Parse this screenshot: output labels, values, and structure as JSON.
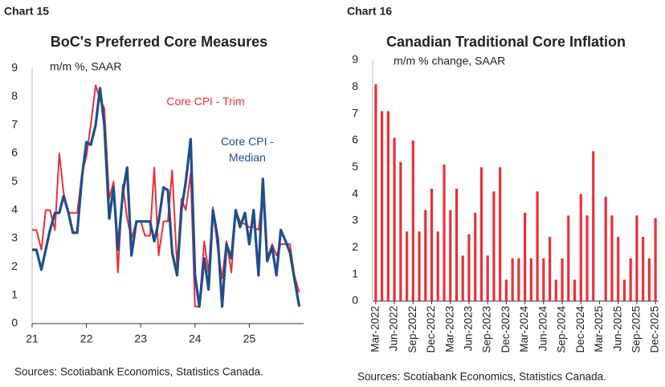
{
  "chart_data": [
    {
      "type": "line",
      "chart_label": "Chart 15",
      "title": "BoC's Preferred Core Measures",
      "subtitle": "m/m %, SAAR",
      "source": "Sources: Scotiabank Economics, Statistics Canada.",
      "x": [
        21,
        21.08,
        21.17,
        21.25,
        21.33,
        21.42,
        21.5,
        21.58,
        21.67,
        21.75,
        21.83,
        21.92,
        22,
        22.08,
        22.17,
        22.25,
        22.33,
        22.42,
        22.5,
        22.58,
        22.67,
        22.75,
        22.83,
        22.92,
        23,
        23.08,
        23.17,
        23.25,
        23.33,
        23.42,
        23.5,
        23.58,
        23.67,
        23.75,
        23.83,
        23.92,
        24,
        24.08,
        24.17,
        24.25,
        24.33,
        24.42,
        24.5,
        24.58,
        24.67,
        24.75,
        24.83,
        24.92,
        25,
        25.08,
        25.17,
        25.25,
        25.33,
        25.42,
        25.5,
        25.58,
        25.67,
        25.75,
        25.83,
        25.92
      ],
      "series": [
        {
          "name": "Core CPI - Trim",
          "color": "#e8303a",
          "values": [
            3.3,
            3.3,
            2.6,
            4.0,
            4.0,
            3.3,
            6.0,
            4.6,
            3.9,
            3.9,
            3.9,
            5.3,
            5.9,
            7.0,
            8.4,
            7.9,
            7.6,
            4.4,
            5.0,
            1.8,
            4.9,
            3.7,
            3.0,
            3.6,
            3.6,
            3.1,
            3.1,
            5.5,
            2.4,
            3.6,
            3.6,
            5.4,
            2.0,
            4.4,
            4.0,
            5.3,
            0.6,
            0.6,
            2.9,
            1.8,
            4.1,
            2.6,
            1.6,
            2.9,
            1.8,
            4.0,
            3.6,
            3.5,
            3.4,
            3.4,
            3.3,
            4.6,
            2.3,
            2.8,
            2.4,
            2.8,
            2.8,
            2.8,
            1.7,
            1.1
          ]
        },
        {
          "name": "Core CPI - Median",
          "color": "#1f4e8c",
          "values": [
            2.6,
            2.6,
            1.9,
            2.6,
            3.3,
            3.9,
            3.9,
            4.5,
            3.9,
            3.2,
            3.2,
            5.2,
            6.4,
            6.3,
            7.0,
            8.3,
            7.0,
            3.7,
            4.8,
            2.6,
            4.6,
            5.5,
            2.4,
            3.6,
            3.6,
            3.6,
            3.6,
            2.9,
            3.6,
            4.8,
            4.7,
            2.5,
            1.7,
            4.0,
            5.0,
            6.5,
            1.7,
            0.6,
            2.3,
            1.2,
            4.0,
            3.0,
            0.6,
            2.8,
            2.3,
            4.0,
            3.4,
            3.9,
            2.8,
            4.0,
            1.7,
            5.1,
            2.2,
            2.7,
            1.7,
            3.3,
            2.9,
            2.5,
            1.6,
            0.6
          ]
        }
      ],
      "xlim": [
        21,
        26
      ],
      "xticks": [
        21,
        22,
        23,
        24,
        25
      ],
      "ylim": [
        0,
        9
      ],
      "yticks": [
        0,
        1,
        2,
        3,
        4,
        5,
        6,
        7,
        8,
        9
      ]
    },
    {
      "type": "bar",
      "chart_label": "Chart 16",
      "title": "Canadian Traditional Core Inflation",
      "subtitle": "m/m % change, SAAR",
      "source": "Sources: Scotiabank Economics, Statistics Canada.",
      "color": "#e8303a",
      "categories": [
        "Mar-2022",
        null,
        null,
        "Jun-2022",
        null,
        null,
        "Sep-2022",
        null,
        null,
        "Dec-2022",
        null,
        null,
        "Mar-2023",
        null,
        null,
        "Jun-2023",
        null,
        null,
        "Sep-2023",
        null,
        null,
        "Dec-2023",
        null,
        null,
        "Mar-2024",
        null,
        null,
        "Jun-2024",
        null,
        null,
        "Sep-2024",
        null,
        null,
        "Dec-2024",
        null,
        null,
        "Mar-2025",
        null,
        null,
        "Jun-2025",
        null,
        null,
        "Sep-2025",
        null,
        null,
        "Dec-2025"
      ],
      "values": [
        8.1,
        7.1,
        7.1,
        6.1,
        5.2,
        2.6,
        6.0,
        2.6,
        3.4,
        4.2,
        2.6,
        5.1,
        3.4,
        4.2,
        1.7,
        2.5,
        3.3,
        5.0,
        1.7,
        4.1,
        5.0,
        0.8,
        1.6,
        1.6,
        3.3,
        1.6,
        4.1,
        1.6,
        2.4,
        0.8,
        1.6,
        3.2,
        0.8,
        4.0,
        3.2,
        5.6,
        0,
        3.9,
        3.2,
        2.4,
        0.8,
        1.6,
        3.2,
        2.4,
        1.6,
        3.1
      ],
      "ylim": [
        0,
        9
      ],
      "yticks": [
        0,
        1,
        2,
        3,
        4,
        5,
        6,
        7,
        8,
        9
      ]
    }
  ]
}
